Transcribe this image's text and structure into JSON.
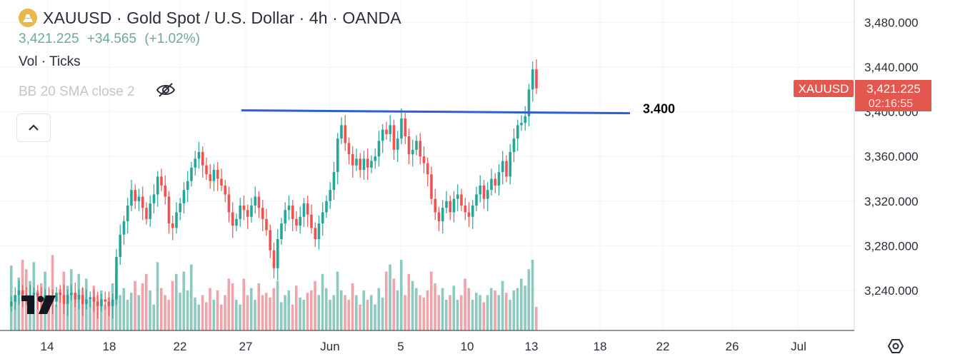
{
  "header": {
    "title": "XAUUSD · Gold Spot / U.S. Dollar · 4h · OANDA",
    "last_price": "3,421.225",
    "change": "+34.565",
    "change_pct": "(+1.02%)",
    "indicator_volume": "Vol · Ticks",
    "indicator_bb": "BB 20 SMA close 2"
  },
  "price_badge": {
    "symbol": "XAUUSD",
    "price": "3,421.225",
    "countdown": "02:16:55"
  },
  "annotation": {
    "label": "3.400",
    "value": 3400
  },
  "colors": {
    "up": "#26a69a",
    "down": "#ef5350",
    "vol_up": "#8ec9bf",
    "vol_down": "#eea4a8",
    "line": "#2f5fd0",
    "badge": "#e4574f",
    "title_icon": "#e7b84a"
  },
  "chart_data": {
    "type": "candlestick",
    "title": "XAUUSD · Gold Spot / U.S. Dollar · 4h · OANDA",
    "interval": "4h",
    "ylim": [
      3210,
      3490
    ],
    "y_ticks": [
      "3,480.000",
      "3,440.000",
      "3,400.000",
      "3,360.000",
      "3,320.000",
      "3,280.000",
      "3,240.000"
    ],
    "y_tick_values": [
      3480,
      3440,
      3400,
      3360,
      3320,
      3280,
      3240
    ],
    "x_ticks": [
      "14",
      "18",
      "22",
      "27",
      "Jun",
      "5",
      "10",
      "13",
      "18",
      "22",
      "26",
      "Jul"
    ],
    "candle_close": [
      3230,
      3236,
      3240,
      3236,
      3232,
      3236,
      3238,
      3234,
      3230,
      3236,
      3232,
      3230,
      3238,
      3236,
      3228,
      3236,
      3238,
      3232,
      3236,
      3228,
      3232,
      3234,
      3230,
      3226,
      3232,
      3230,
      3226,
      3232,
      3270,
      3290,
      3302,
      3316,
      3330,
      3320,
      3324,
      3314,
      3304,
      3318,
      3326,
      3342,
      3334,
      3324,
      3300,
      3296,
      3310,
      3318,
      3330,
      3338,
      3350,
      3358,
      3364,
      3352,
      3344,
      3338,
      3348,
      3340,
      3334,
      3326,
      3310,
      3298,
      3304,
      3316,
      3312,
      3306,
      3316,
      3324,
      3314,
      3304,
      3294,
      3276,
      3260,
      3286,
      3300,
      3312,
      3316,
      3304,
      3298,
      3306,
      3318,
      3308,
      3296,
      3286,
      3300,
      3310,
      3320,
      3330,
      3346,
      3376,
      3388,
      3372,
      3362,
      3352,
      3358,
      3348,
      3358,
      3350,
      3356,
      3360,
      3374,
      3384,
      3380,
      3388,
      3366,
      3376,
      3394,
      3378,
      3362,
      3366,
      3374,
      3360,
      3354,
      3344,
      3322,
      3310,
      3302,
      3314,
      3320,
      3310,
      3322,
      3326,
      3316,
      3310,
      3306,
      3316,
      3326,
      3334,
      3322,
      3330,
      3340,
      3334,
      3346,
      3356,
      3342,
      3364,
      3376,
      3388,
      3390,
      3396,
      3420,
      3438,
      3421
    ],
    "volume_ticks_relative": [
      0.55,
      0.3,
      0.45,
      0.6,
      0.52,
      0.42,
      0.58,
      0.34,
      0.4,
      0.5,
      0.3,
      0.64,
      0.22,
      0.35,
      0.5,
      0.38,
      0.52,
      0.3,
      0.48,
      0.36,
      0.44,
      0.26,
      0.38,
      0.3,
      0.34,
      0.22,
      0.28,
      0.4,
      0.48,
      0.3,
      0.36,
      0.26,
      0.32,
      0.42,
      0.3,
      0.4,
      0.48,
      0.34,
      0.22,
      0.58,
      0.36,
      0.3,
      0.26,
      0.42,
      0.48,
      0.32,
      0.5,
      0.34,
      0.56,
      0.28,
      0.22,
      0.3,
      0.24,
      0.36,
      0.26,
      0.34,
      0.22,
      0.3,
      0.44,
      0.4,
      0.26,
      0.22,
      0.44,
      0.3,
      0.36,
      0.26,
      0.4,
      0.3,
      0.32,
      0.28,
      0.36,
      0.42,
      0.24,
      0.3,
      0.34,
      0.22,
      0.38,
      0.28,
      0.26,
      0.32,
      0.34,
      0.42,
      0.3,
      0.48,
      0.36,
      0.26,
      0.3,
      0.5,
      0.34,
      0.3,
      0.26,
      0.4,
      0.3,
      0.22,
      0.34,
      0.26,
      0.3,
      0.22,
      0.36,
      0.28,
      0.5,
      0.56,
      0.44,
      0.34,
      0.6,
      0.3,
      0.48,
      0.42,
      0.36,
      0.3,
      0.28,
      0.34,
      0.5,
      0.4,
      0.3,
      0.36,
      0.26,
      0.3,
      0.38,
      0.26,
      0.3,
      0.44,
      0.36,
      0.26,
      0.32,
      0.3,
      0.24,
      0.3,
      0.36,
      0.34,
      0.3,
      0.42,
      0.32,
      0.26,
      0.34,
      0.36,
      0.44,
      0.38,
      0.52,
      0.6,
      0.2
    ]
  }
}
